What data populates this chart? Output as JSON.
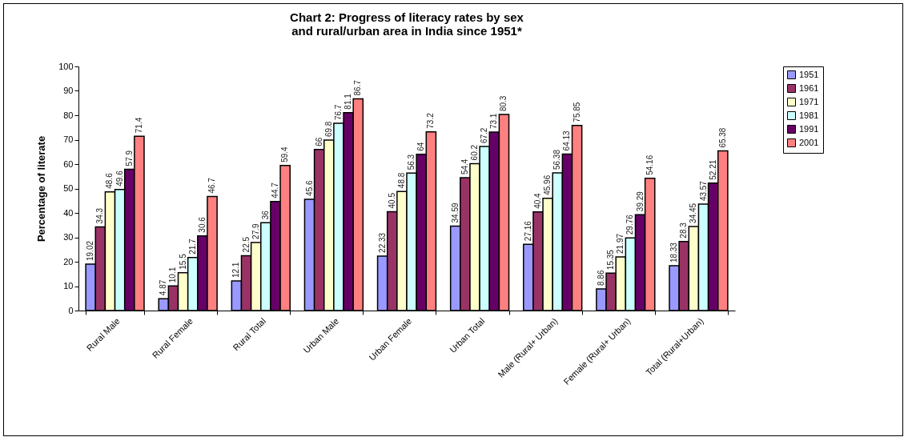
{
  "chart_data": {
    "type": "bar",
    "title": "Chart 2: Progress of literacy rates by sex and rural/urban area in India since 1951*",
    "ylabel": "Percentage of literate",
    "categories": [
      "Rural Male",
      "Rural Female",
      "Rural Total",
      "Urban Male",
      "Urban Female",
      "Urban Total",
      "Male (Rural+ Urban)",
      "Female (Rural+ Urban)",
      "Total (Rural+Urban)"
    ],
    "series": [
      {
        "name": "1951",
        "color": "#9999ff",
        "values": [
          19.02,
          4.87,
          12.1,
          45.6,
          22.33,
          34.59,
          27.16,
          8.86,
          18.33
        ]
      },
      {
        "name": "1961",
        "color": "#993366",
        "values": [
          34.3,
          10.1,
          22.5,
          66,
          40.5,
          54.4,
          40.4,
          15.35,
          28.3
        ]
      },
      {
        "name": "1971",
        "color": "#ffffcc",
        "values": [
          48.6,
          15.5,
          27.9,
          69.8,
          48.8,
          60.2,
          45.96,
          21.97,
          34.45
        ]
      },
      {
        "name": "1981",
        "color": "#ccffff",
        "values": [
          49.6,
          21.7,
          36,
          76.7,
          56.3,
          67.2,
          56.38,
          29.76,
          43.57
        ]
      },
      {
        "name": "1991",
        "color": "#660066",
        "values": [
          57.9,
          30.6,
          44.7,
          81.1,
          64,
          73.1,
          64.13,
          39.29,
          52.21
        ]
      },
      {
        "name": "2001",
        "color": "#ff8080",
        "values": [
          71.4,
          46.7,
          59.4,
          86.7,
          73.2,
          80.3,
          75.85,
          54.16,
          65.38
        ]
      }
    ],
    "ylim": [
      0,
      100
    ],
    "yticks": [
      0,
      10,
      20,
      30,
      40,
      50,
      60,
      70,
      80,
      90,
      100
    ],
    "grid": false,
    "legend": "right",
    "data_labels": true
  }
}
